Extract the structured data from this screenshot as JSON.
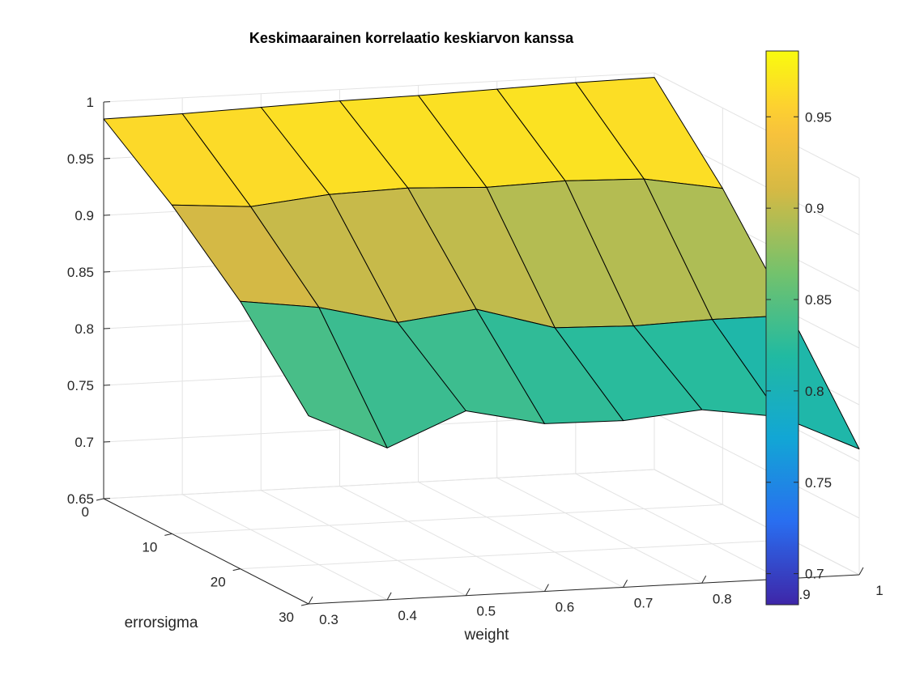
{
  "chart_data": {
    "type": "surface",
    "title": "Keskimaarainen korrelaatio keskiarvon kanssa",
    "xlabel": "weight",
    "ylabel": "errorsigma",
    "zlabel": "",
    "weight": [
      0.3,
      0.4,
      0.5,
      0.6,
      0.7,
      0.8,
      0.9,
      1.0
    ],
    "errorsigma": [
      0,
      10,
      20,
      30
    ],
    "z": [
      [
        0.985,
        0.986,
        0.988,
        0.99,
        0.991,
        0.993,
        0.995,
        0.996
      ],
      [
        0.94,
        0.935,
        0.942,
        0.944,
        0.941,
        0.943,
        0.941,
        0.929
      ],
      [
        0.886,
        0.877,
        0.86,
        0.868,
        0.848,
        0.846,
        0.848,
        0.848
      ],
      [
        0.816,
        0.784,
        0.813,
        0.798,
        0.797,
        0.803,
        0.793,
        0.761
      ]
    ],
    "xlim": [
      0.3,
      1
    ],
    "ylim": [
      0,
      30
    ],
    "zlim": [
      0.65,
      1
    ],
    "x_ticks": [
      "0.3",
      "0.4",
      "0.5",
      "0.6",
      "0.7",
      "0.8",
      "0.9",
      "1"
    ],
    "y_ticks": [
      "0",
      "10",
      "20",
      "30"
    ],
    "z_ticks": [
      "0.65",
      "0.7",
      "0.75",
      "0.8",
      "0.85",
      "0.9",
      "0.95",
      "1"
    ],
    "colorbar": {
      "colormap": "parula",
      "clim": [
        0.683,
        0.986
      ],
      "ticks": [
        "0.7",
        "0.75",
        "0.8",
        "0.85",
        "0.9",
        "0.95"
      ]
    },
    "grid": true
  }
}
